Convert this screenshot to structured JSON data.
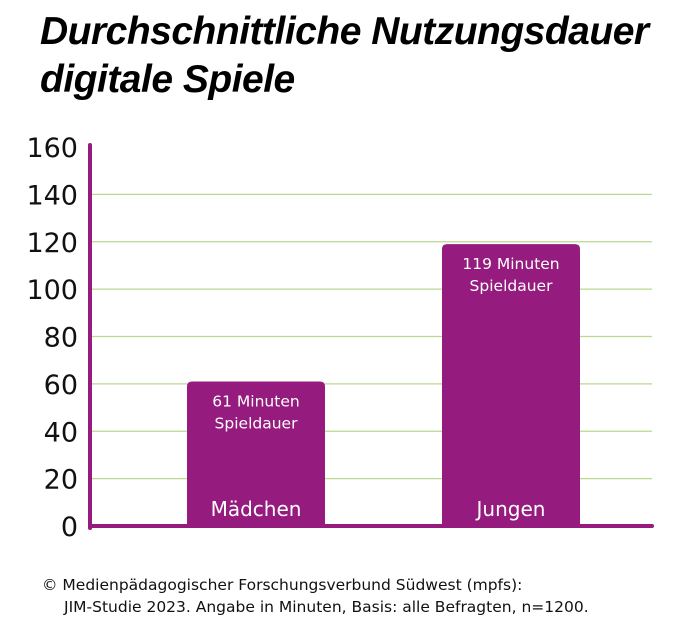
{
  "chart_data": {
    "type": "bar",
    "title_lines": [
      "Durchschnittliche Nutzungsdauer",
      "digitale Spiele"
    ],
    "categories": [
      "Mädchen",
      "Jungen"
    ],
    "values": [
      61,
      119
    ],
    "data_labels": [
      [
        "61 Minuten",
        "Spieldauer"
      ],
      [
        "119 Minuten",
        "Spieldauer"
      ]
    ],
    "ylim": [
      0,
      160
    ],
    "yticks": [
      0,
      20,
      40,
      60,
      80,
      100,
      120,
      140,
      160
    ],
    "grid": true,
    "colors": {
      "bar": "#951b7e",
      "axis": "#951b7e",
      "grid": "#b9d98f"
    }
  },
  "source": [
    "© Medienpädagogischer Forschungsverbund Südwest (mpfs):",
    "JIM-Studie 2023. Angabe in Minuten, Basis: alle Befragten, n=1200."
  ]
}
